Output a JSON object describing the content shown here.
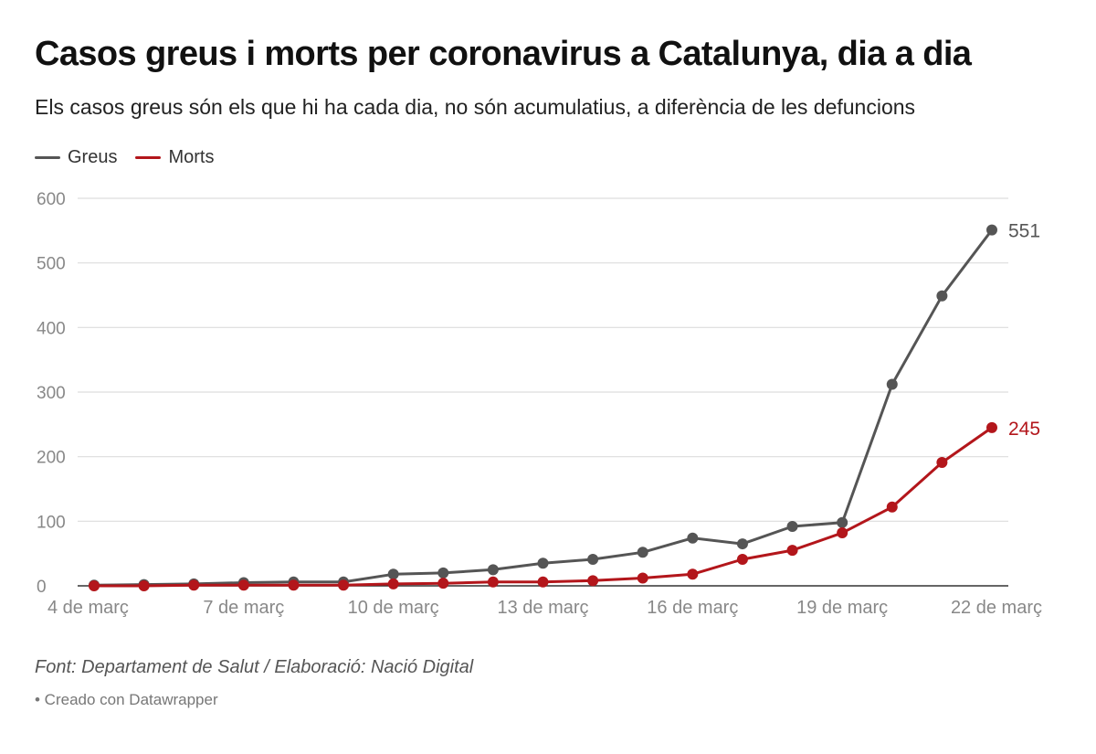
{
  "header": {
    "title": "Casos greus i morts per coronavirus a Catalunya, dia a dia",
    "subtitle": "Els casos greus són els que hi ha cada dia, no són acumulatius, a diferència de les defuncions"
  },
  "footer": {
    "source": "Font: Departament de Salut / Elaboració: Nació Digital",
    "credit": "• Creado con Datawrapper"
  },
  "colors": {
    "greus": "#555555",
    "morts": "#b3161b",
    "grid": "#dddddd",
    "axis": "#333333",
    "tick_text": "#888888"
  },
  "chart_data": {
    "type": "line",
    "title": "Casos greus i morts per coronavirus a Catalunya, dia a dia",
    "subtitle": "Els casos greus són els que hi ha cada dia, no són acumulatius, a diferència de les defuncions",
    "xlabel": "",
    "ylabel": "",
    "ylim": [
      0,
      600
    ],
    "yticks": [
      0,
      100,
      200,
      300,
      400,
      500,
      600
    ],
    "grid": true,
    "legend": "top-left",
    "categories": [
      "4 de març",
      "5 de març",
      "6 de març",
      "7 de març",
      "8 de març",
      "9 de març",
      "10 de març",
      "11 de març",
      "12 de març",
      "13 de març",
      "14 de març",
      "15 de març",
      "16 de març",
      "17 de març",
      "18 de març",
      "19 de març",
      "20 de març",
      "21 de març",
      "22 de març"
    ],
    "xtick_labels": [
      "4 de març",
      "7 de març",
      "10 de març",
      "13 de març",
      "16 de març",
      "19 de març",
      "22 de març"
    ],
    "series": [
      {
        "name": "Greus",
        "color": "#555555",
        "end_label": "551",
        "values": [
          1,
          2,
          3,
          5,
          6,
          6,
          18,
          20,
          25,
          35,
          41,
          52,
          74,
          65,
          92,
          98,
          312,
          449,
          551
        ]
      },
      {
        "name": "Morts",
        "color": "#b3161b",
        "end_label": "245",
        "values": [
          0,
          0,
          1,
          1,
          1,
          1,
          3,
          4,
          6,
          6,
          8,
          12,
          18,
          41,
          55,
          82,
          122,
          191,
          245
        ]
      }
    ]
  }
}
